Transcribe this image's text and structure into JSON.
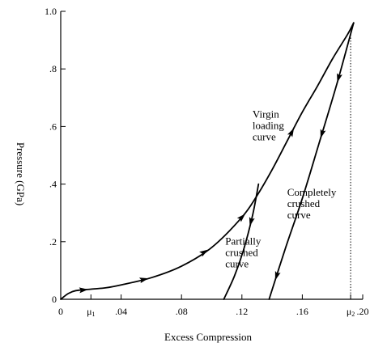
{
  "chart_data": {
    "type": "line",
    "title": "",
    "xlabel": "Excess Compression",
    "ylabel": "Pressure (GPa)",
    "xlim": [
      0,
      0.2
    ],
    "ylim": [
      0,
      1.0
    ],
    "grid": false,
    "x_ticks": [
      {
        "value": 0,
        "label": "0"
      },
      {
        "value": 0.02,
        "label": "μ",
        "sub": "1"
      },
      {
        "value": 0.04,
        "label": ".04"
      },
      {
        "value": 0.08,
        "label": ".08"
      },
      {
        "value": 0.12,
        "label": ".12"
      },
      {
        "value": 0.16,
        "label": ".16"
      },
      {
        "value": 0.192,
        "label": "μ",
        "sub": "2"
      },
      {
        "value": 0.2,
        "label": ".20"
      }
    ],
    "y_ticks": [
      {
        "value": 0,
        "label": "0"
      },
      {
        "value": 0.2,
        "label": ".2"
      },
      {
        "value": 0.4,
        "label": ".4"
      },
      {
        "value": 0.6,
        "label": ".6"
      },
      {
        "value": 0.8,
        "label": ".8"
      },
      {
        "value": 1.0,
        "label": "1.0"
      }
    ],
    "series": [
      {
        "key": "virgin",
        "points": [
          [
            0,
            0
          ],
          [
            0.005,
            0.02
          ],
          [
            0.01,
            0.03
          ],
          [
            0.02,
            0.035
          ],
          [
            0.03,
            0.04
          ],
          [
            0.04,
            0.05
          ],
          [
            0.06,
            0.075
          ],
          [
            0.08,
            0.115
          ],
          [
            0.1,
            0.18
          ],
          [
            0.12,
            0.285
          ],
          [
            0.13,
            0.36
          ],
          [
            0.14,
            0.45
          ],
          [
            0.15,
            0.55
          ],
          [
            0.16,
            0.65
          ],
          [
            0.17,
            0.74
          ],
          [
            0.18,
            0.835
          ],
          [
            0.19,
            0.92
          ],
          [
            0.194,
            0.96
          ]
        ],
        "arrows": [
          0.015,
          0.055,
          0.095,
          0.12,
          0.153
        ]
      },
      {
        "key": "partially",
        "points": [
          [
            0.131,
            0.4
          ],
          [
            0.127,
            0.29
          ],
          [
            0.121,
            0.17
          ],
          [
            0.115,
            0.08
          ],
          [
            0.108,
            0.0
          ]
        ],
        "arrows": [
          0.126
        ]
      },
      {
        "key": "completely",
        "points": [
          [
            0.194,
            0.96
          ],
          [
            0.183,
            0.75
          ],
          [
            0.171,
            0.54
          ],
          [
            0.16,
            0.35
          ],
          [
            0.149,
            0.18
          ],
          [
            0.138,
            0.0
          ]
        ],
        "arrows": [
          0.184,
          0.173,
          0.143
        ]
      }
    ],
    "reference_line": {
      "x": 0.192,
      "y_from": 0,
      "y_to": 0.93,
      "style": "dotted"
    },
    "annotations": [
      {
        "key": "virgin",
        "lines": [
          "Virgin",
          "loading",
          "curve"
        ],
        "at": [
          0.127,
          0.63
        ]
      },
      {
        "key": "partially",
        "lines": [
          "Partially",
          "crushed",
          "curve"
        ],
        "at": [
          0.109,
          0.19
        ]
      },
      {
        "key": "completely",
        "lines": [
          "Completely",
          "crushed",
          "curve"
        ],
        "at": [
          0.15,
          0.36
        ]
      }
    ]
  }
}
